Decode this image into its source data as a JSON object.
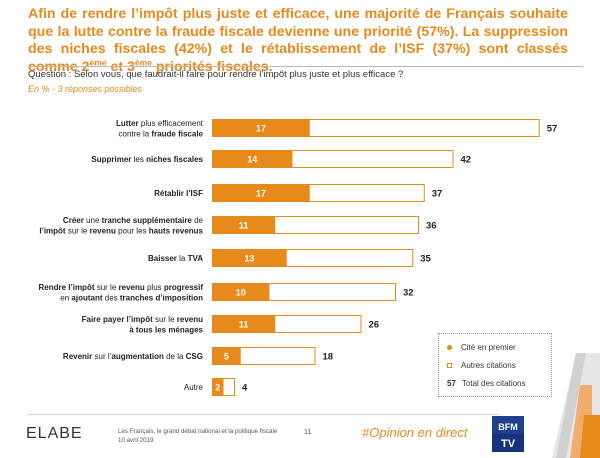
{
  "headline": {
    "line1": "Afin de rendre l’impôt plus juste et efficace, une majorité de Français souhaite que la lutte contre la fraude fiscale devienne une priorité (57%). La suppression des niches fiscales (42%) et le rétablissement de l’ISF (37%) sont classés comme 2",
    "sup1": "ème",
    "mid": " et 3",
    "sup2": "ème",
    "end": " priorités fiscales."
  },
  "question": "Question : Selon vous, que faudrait-il faire pour rendre l’impôt plus juste et plus efficace ?",
  "subquestion": "En % - 3 réponses possibles",
  "chart_data": {
    "type": "bar",
    "orientation": "horizontal",
    "xlim": [
      0,
      60
    ],
    "categories": [
      [
        {
          "t": "Lutter",
          "b": true
        },
        {
          "t": " plus efficacement",
          "b": false
        },
        {
          "br": true
        },
        {
          "t": "contre la ",
          "b": false
        },
        {
          "t": "fraude fiscale",
          "b": true
        }
      ],
      [
        {
          "t": "Supprimer",
          "b": true
        },
        {
          "t": " les ",
          "b": false
        },
        {
          "t": "niches fiscales",
          "b": true
        }
      ],
      [
        {
          "t": "Rétablir l’ISF",
          "b": true
        }
      ],
      [
        {
          "t": "Créer",
          "b": true
        },
        {
          "t": " une ",
          "b": false
        },
        {
          "t": "tranche supplémentaire",
          "b": true
        },
        {
          "t": " de",
          "b": false
        },
        {
          "br": true
        },
        {
          "t": "l’impôt",
          "b": true
        },
        {
          "t": " sur le ",
          "b": false
        },
        {
          "t": "revenu",
          "b": true
        },
        {
          "t": " pour les ",
          "b": false
        },
        {
          "t": "hauts revenus",
          "b": true
        }
      ],
      [
        {
          "t": "Baisser",
          "b": true
        },
        {
          "t": " la ",
          "b": false
        },
        {
          "t": "TVA",
          "b": true
        }
      ],
      [
        {
          "t": "Rendre l’impôt",
          "b": true
        },
        {
          "t": " sur le ",
          "b": false
        },
        {
          "t": "revenu",
          "b": true
        },
        {
          "t": " plus ",
          "b": false
        },
        {
          "t": "progressif",
          "b": true
        },
        {
          "br": true
        },
        {
          "t": "en ",
          "b": false
        },
        {
          "t": "ajoutant",
          "b": true
        },
        {
          "t": " des ",
          "b": false
        },
        {
          "t": "tranches d’imposition",
          "b": true
        }
      ],
      [
        {
          "t": "Faire payer l’impôt",
          "b": true
        },
        {
          "t": " sur le ",
          "b": false
        },
        {
          "t": "revenu",
          "b": true
        },
        {
          "br": true
        },
        {
          "t": "à tous les ménages",
          "b": true
        }
      ],
      [
        {
          "t": "Revenir",
          "b": true
        },
        {
          "t": " sur l’",
          "b": false
        },
        {
          "t": "augmentation",
          "b": true
        },
        {
          "t": " de la ",
          "b": false
        },
        {
          "t": "CSG",
          "b": true
        }
      ],
      [
        {
          "t": "Autre",
          "b": false
        }
      ]
    ],
    "series": [
      {
        "name": "Cité en premier",
        "values": [
          17,
          14,
          17,
          11,
          13,
          10,
          11,
          5,
          2
        ]
      },
      {
        "name": "Total des citations",
        "values": [
          57,
          42,
          37,
          36,
          35,
          32,
          26,
          18,
          4
        ]
      }
    ],
    "colors": {
      "first": "#e8891c",
      "outline": "#e8891c"
    }
  },
  "legend": {
    "first": "Cité en premier",
    "others": "Autres citations",
    "total_num": "57",
    "total": "Total des citations"
  },
  "footer": {
    "logo": "ELABE",
    "line1": "Les Français, le grand débat national et la politique fiscale",
    "line2": "10 avril 2019",
    "page": "11",
    "hashtag": "#Opinion en direct"
  },
  "tvlogo": {
    "top": "BFM",
    "bottom": "TV"
  }
}
